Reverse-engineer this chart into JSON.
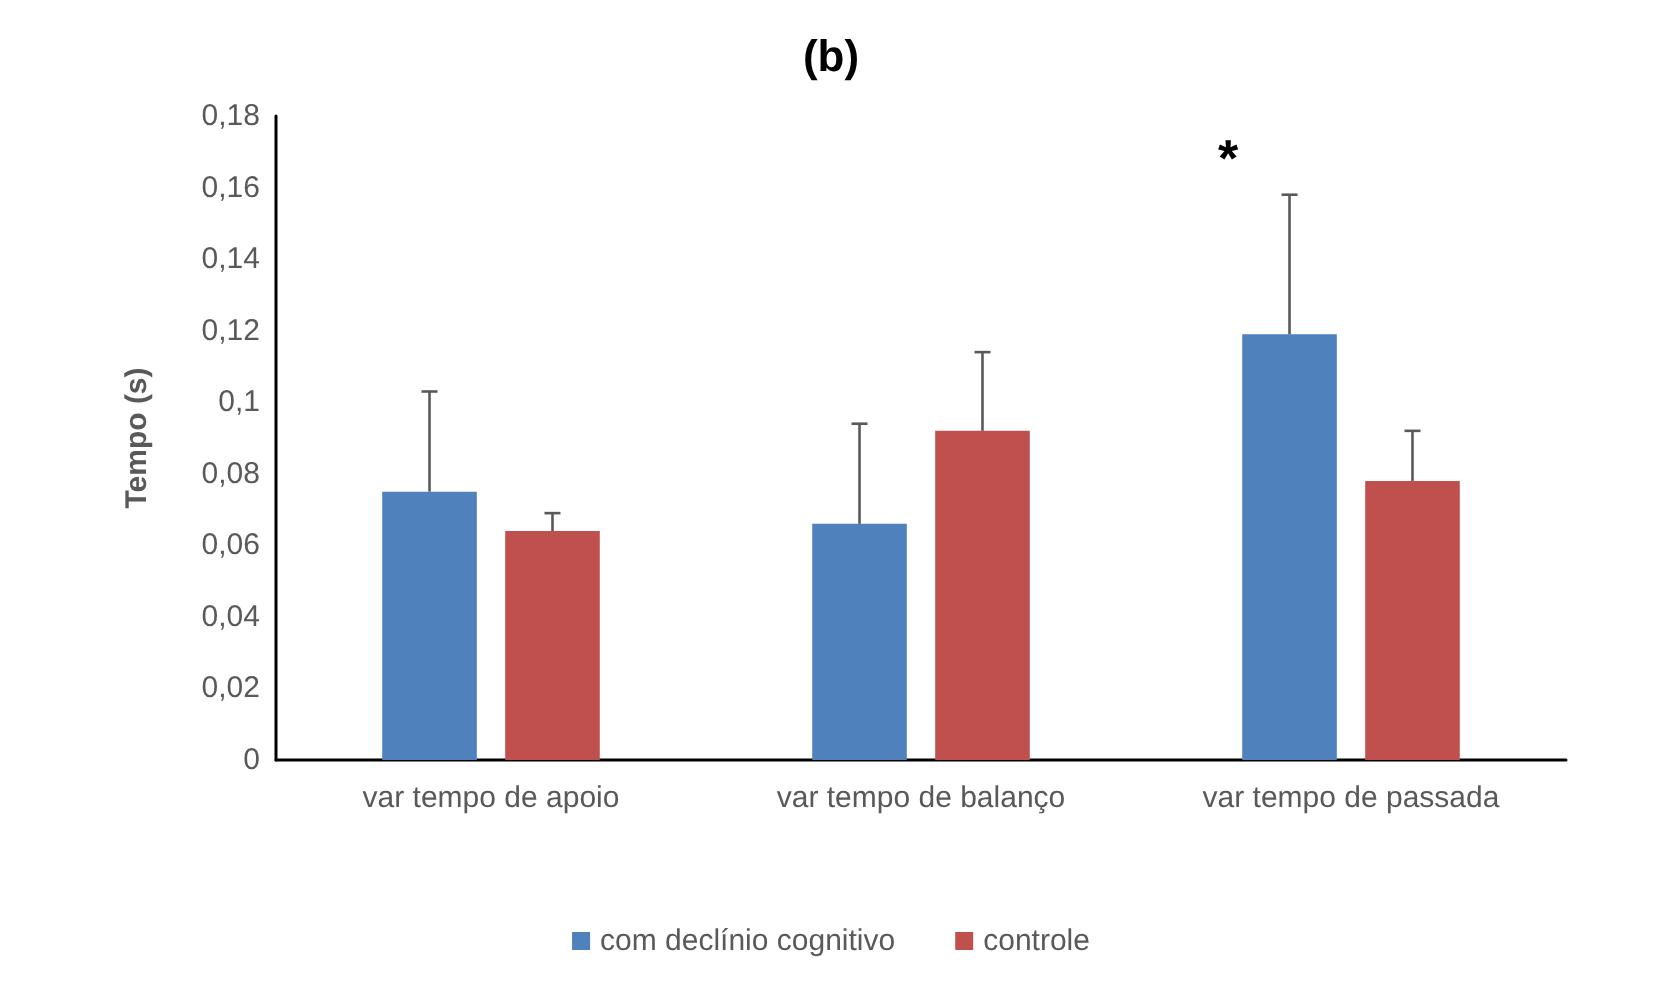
{
  "chart_data": {
    "type": "bar",
    "title": "(b)",
    "ylabel": "Tempo (s)",
    "categories": [
      "var tempo de apoio",
      "var tempo de balanço",
      "var tempo de passada"
    ],
    "series": [
      {
        "name": "com declínio cognitivo",
        "color": "#4f81bd",
        "values": [
          0.075,
          0.066,
          0.119
        ],
        "errors": [
          [
            0.075,
            0.103
          ],
          [
            0.066,
            0.094
          ],
          [
            0.119,
            0.158
          ]
        ]
      },
      {
        "name": "controle",
        "color": "#c0504d",
        "values": [
          0.064,
          0.092,
          0.078
        ],
        "errors": [
          [
            0.064,
            0.069
          ],
          [
            0.092,
            0.114
          ],
          [
            0.078,
            0.092
          ]
        ]
      }
    ],
    "ylim": [
      0,
      0.18
    ],
    "yticks": [
      0,
      {
        "value": 0.02,
        "label": "0,02"
      },
      {
        "value": 0.04,
        "label": "0,04"
      },
      {
        "value": 0.06,
        "label": "0,06"
      },
      {
        "value": 0.08,
        "label": "0,08"
      },
      {
        "value": 0.1,
        "label": "0,1"
      },
      {
        "value": 0.12,
        "label": "0,12"
      },
      {
        "value": 0.14,
        "label": "0,14"
      },
      {
        "value": 0.16,
        "label": "0,16"
      },
      {
        "value": 0.18,
        "label": "0,18"
      }
    ],
    "annotations": [
      "*"
    ],
    "grid": false,
    "legend": "bottom"
  }
}
